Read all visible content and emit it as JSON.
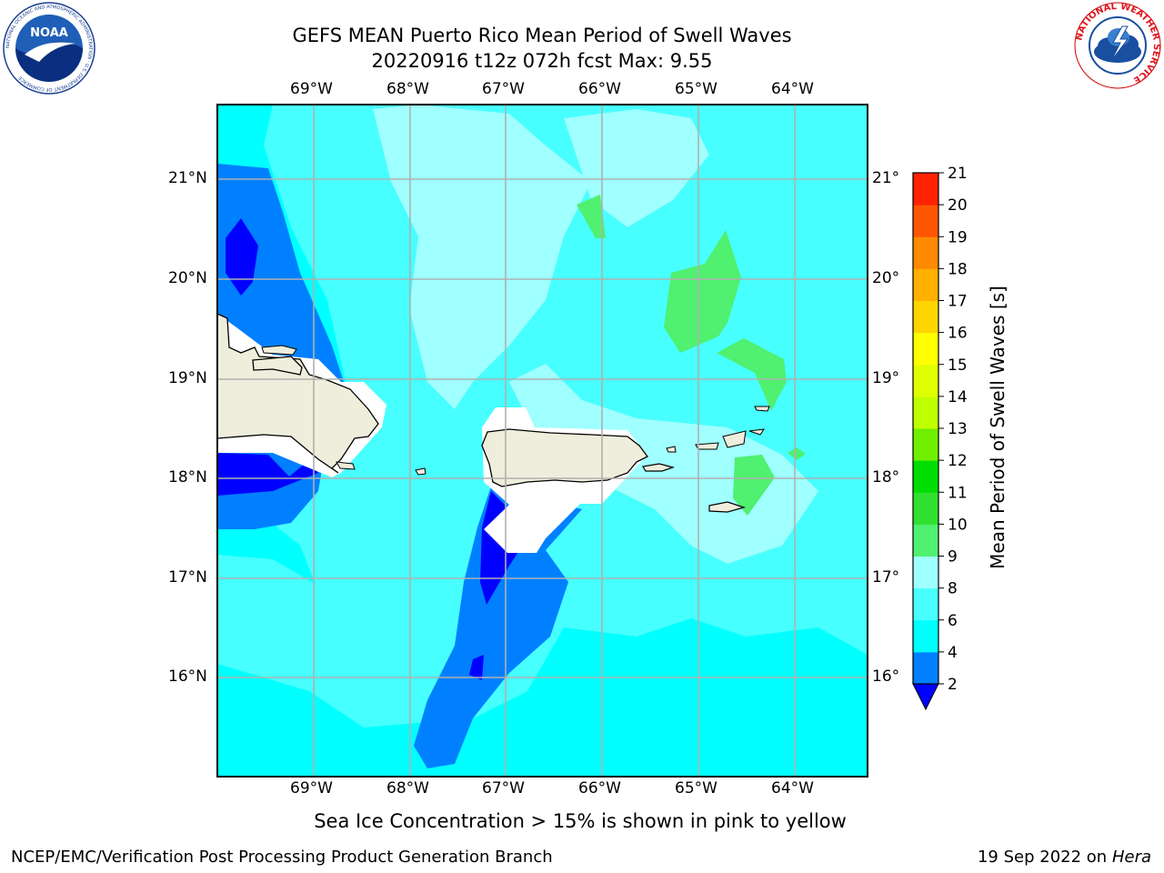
{
  "header": {
    "title_line1": "GEFS MEAN Puerto Rico Mean Period of Swell Waves",
    "title_line2": "20220916 t12z 072h fcst   Max: 9.55"
  },
  "map": {
    "lon_labels": [
      "69°W",
      "68°W",
      "67°W",
      "66°W",
      "65°W",
      "64°W"
    ],
    "lat_labels": [
      "21°N",
      "20°N",
      "19°N",
      "18°N",
      "17°N",
      "16°N"
    ],
    "lon_range": [
      -70.0,
      -63.25
    ],
    "lat_range": [
      15.0,
      21.75
    ]
  },
  "colorbar": {
    "label": "Mean Period of Swell Waves [s]",
    "ticks": [
      "2",
      "4",
      "6",
      "8",
      "9",
      "10",
      "11",
      "12",
      "13",
      "14",
      "15",
      "16",
      "17",
      "18",
      "19",
      "20",
      "21"
    ],
    "colors": [
      "#0000ff",
      "#0080ff",
      "#00ffff",
      "#47ffff",
      "#a0ffff",
      "#50f070",
      "#30e030",
      "#00dd00",
      "#70ee00",
      "#c0ff00",
      "#e0ff00",
      "#ffff00",
      "#ffd500",
      "#ffb000",
      "#ff8a00",
      "#ff5500",
      "#ff2200",
      "#ff0000"
    ]
  },
  "footer": {
    "note": "Sea Ice Concentration > 15% is shown in pink to yellow",
    "credit": "NCEP/EMC/Verification Post Processing Product Generation Branch",
    "date": "19 Sep 2022 on",
    "system": "Hera"
  },
  "logos": {
    "noaa_text": "NOAA",
    "noaa_ring": "NATIONAL OCEANIC AND ATMOSPHERIC ADMINISTRATION · U.S. DEPARTMENT OF COMMERCE",
    "nws_ring": "NATIONAL WEATHER SERVICE"
  }
}
